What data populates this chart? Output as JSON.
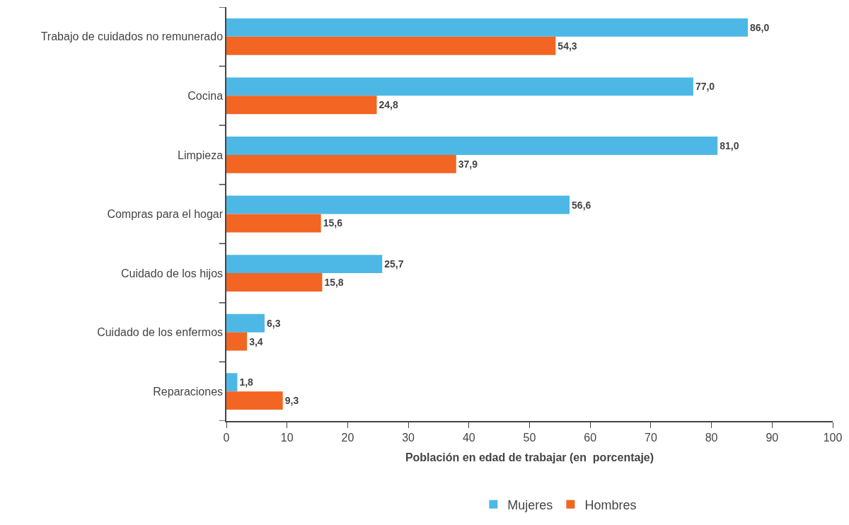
{
  "chart_data": {
    "type": "bar",
    "orientation": "horizontal",
    "xlabel": "Población en edad de trabajar (en  porcentaje)",
    "categories": [
      "Trabajo de cuidados no remunerado",
      "Cocina",
      "Limpieza",
      "Compras para el hogar",
      "Cuidado de los hijos",
      "Cuidado de los enfermos",
      "Reparaciones"
    ],
    "series": [
      {
        "name": "Mujeres",
        "color": "#4db8e6",
        "values": [
          86.0,
          77.0,
          81.0,
          56.6,
          25.7,
          6.3,
          1.8
        ],
        "value_labels": [
          "86,0",
          "77,0",
          "81,0",
          "56,6",
          "25,7",
          "6,3",
          "1,8"
        ]
      },
      {
        "name": "Hombres",
        "color": "#f26522",
        "values": [
          54.3,
          24.8,
          37.9,
          15.6,
          15.8,
          3.4,
          9.3
        ],
        "value_labels": [
          "54,3",
          "24,8",
          "37,9",
          "15,6",
          "15,8",
          "3,4",
          "9,3"
        ]
      }
    ],
    "xlim": [
      0,
      100
    ],
    "xticks": [
      0,
      10,
      20,
      30,
      40,
      50,
      60,
      70,
      80,
      90,
      100
    ],
    "legend": "bottom"
  }
}
